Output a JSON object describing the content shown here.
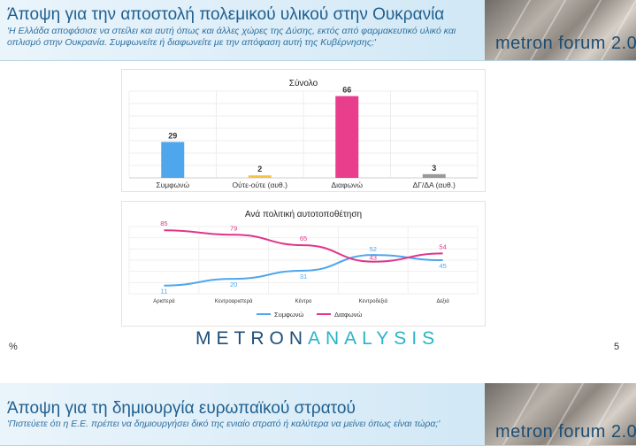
{
  "slide1": {
    "title": "Άποψη για την αποστολή πολεμικού υλικού στην Ουκρανία",
    "question": "'Η Ελλάδα αποφάσισε να στείλει και αυτή όπως και άλλες χώρες της Δύσης, εκτός από φαρμακευτικό υλικό και οπλισμό στην Ουκρανία. Συμφωνείτε ή διαφωνείτε με την απόφαση αυτή της Κυβέρνησης;'",
    "brand": "metron forum 2.0",
    "percent_label": "%",
    "page_number": "5",
    "logo_part1": "METRON",
    "logo_part2": "ANALYSIS"
  },
  "slide2": {
    "title": "Άποψη για τη δημιουργία ευρωπαϊκού στρατού",
    "question": "'Πιστεύετε ότι η Ε.Ε. πρέπει να δημιουργήσει δικό της ενιαίο στρατό ή καλύτερα να μείνει όπως είναι τώρα;'",
    "brand": "metron forum 2.0"
  },
  "chart_data": [
    {
      "type": "bar",
      "title": "Σύνολο",
      "categories": [
        "Συμφωνώ",
        "Ούτε-ούτε (αυθ.)",
        "Διαφωνώ",
        "ΔΓ/ΔΑ (αυθ.)"
      ],
      "values": [
        29,
        2,
        66,
        3
      ],
      "colors": [
        "#4ea6ec",
        "#f5c242",
        "#e83e8c",
        "#9a9a9a"
      ],
      "ylim": [
        0,
        70
      ],
      "grid": true
    },
    {
      "type": "line",
      "title": "Ανά πολιτική αυτοτοποθέτηση",
      "categories": [
        "Αριστερά",
        "Κεντροαριστερά",
        "Κέντρο",
        "Κεντροδεξιά",
        "Δεξιά"
      ],
      "series": [
        {
          "name": "Συμφωνώ",
          "values": [
            11,
            20,
            31,
            52,
            45
          ],
          "color": "#4ea6ec"
        },
        {
          "name": "Διαφωνώ",
          "values": [
            85,
            79,
            65,
            43,
            54
          ],
          "color": "#e0358a"
        }
      ],
      "ylim": [
        0,
        90
      ],
      "grid": true,
      "legend": "bottom"
    }
  ]
}
